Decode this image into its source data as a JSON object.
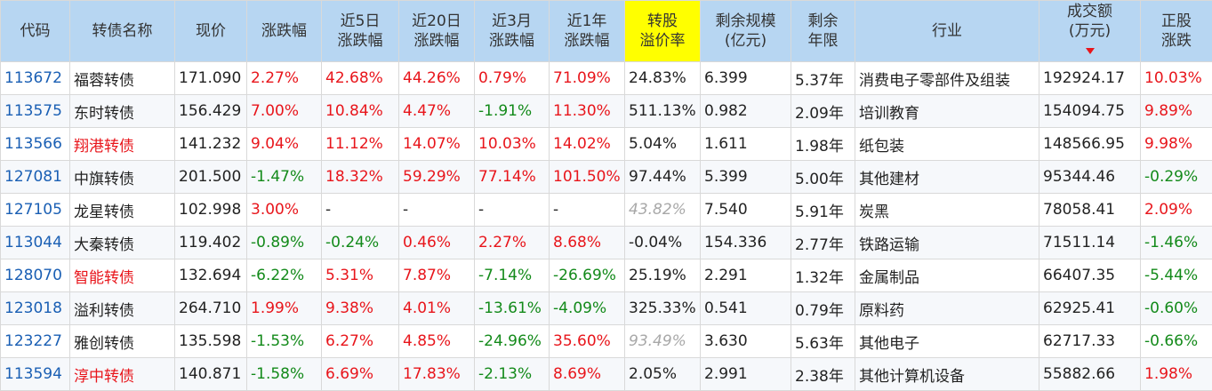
{
  "headers": [
    [
      "代码"
    ],
    [
      "转债名称"
    ],
    [
      "现价"
    ],
    [
      "涨跌幅"
    ],
    [
      "近5日",
      "涨跌幅"
    ],
    [
      "近20日",
      "涨跌幅"
    ],
    [
      "近3月",
      "涨跌幅"
    ],
    [
      "近1年",
      "涨跌幅"
    ],
    [
      "转股",
      "溢价率"
    ],
    [
      "剩余规模",
      "(亿元)"
    ],
    [
      "剩余",
      "年限"
    ],
    [
      "行业"
    ],
    [
      "成交额",
      "(万元)"
    ],
    [
      "正股",
      "涨跌"
    ]
  ],
  "sorted_column": "成交额",
  "colors": {
    "up": "#e8151b",
    "down": "#138a1a",
    "code": "#1a5fb4",
    "header_bg": "#b7d6f2",
    "highlight_header": "#ffff00"
  },
  "rows": [
    {
      "code": "113672",
      "name": "福蓉转债",
      "name_red": false,
      "price": "171.090",
      "chg": "2.27%",
      "chg5": "42.68%",
      "chg20": "44.26%",
      "chg3m": "0.79%",
      "chg1y": "71.09%",
      "premium": "24.83%",
      "premium_gray": false,
      "scale": "6.399",
      "years": "5.37年",
      "industry": "消费电子零部件及组装",
      "turnover": "192924.17",
      "stock_chg": "10.03%"
    },
    {
      "code": "113575",
      "name": "东时转债",
      "name_red": false,
      "price": "156.429",
      "chg": "7.00%",
      "chg5": "10.84%",
      "chg20": "4.47%",
      "chg3m": "-1.91%",
      "chg1y": "11.30%",
      "premium": "511.13%",
      "premium_gray": false,
      "scale": "0.982",
      "years": "2.09年",
      "industry": "培训教育",
      "turnover": "154094.75",
      "stock_chg": "9.89%"
    },
    {
      "code": "113566",
      "name": "翔港转债",
      "name_red": true,
      "price": "141.232",
      "chg": "9.04%",
      "chg5": "11.12%",
      "chg20": "14.07%",
      "chg3m": "10.03%",
      "chg1y": "14.02%",
      "premium": "5.04%",
      "premium_gray": false,
      "scale": "1.611",
      "years": "1.98年",
      "industry": "纸包装",
      "turnover": "148566.95",
      "stock_chg": "9.98%"
    },
    {
      "code": "127081",
      "name": "中旗转债",
      "name_red": false,
      "price": "201.500",
      "chg": "-1.47%",
      "chg5": "18.32%",
      "chg20": "59.29%",
      "chg3m": "77.14%",
      "chg1y": "101.50%",
      "premium": "97.44%",
      "premium_gray": false,
      "scale": "5.399",
      "years": "5.00年",
      "industry": "其他建材",
      "turnover": "95344.46",
      "stock_chg": "-0.29%"
    },
    {
      "code": "127105",
      "name": "龙星转债",
      "name_red": false,
      "price": "102.998",
      "chg": "3.00%",
      "chg5": "-",
      "chg20": "-",
      "chg3m": "-",
      "chg1y": "-",
      "premium": "43.82%",
      "premium_gray": true,
      "scale": "7.540",
      "years": "5.91年",
      "industry": "炭黑",
      "turnover": "78058.41",
      "stock_chg": "2.09%"
    },
    {
      "code": "113044",
      "name": "大秦转债",
      "name_red": false,
      "price": "119.402",
      "chg": "-0.89%",
      "chg5": "-0.24%",
      "chg20": "0.46%",
      "chg3m": "2.27%",
      "chg1y": "8.68%",
      "premium": "-0.04%",
      "premium_gray": false,
      "scale": "154.336",
      "years": "2.77年",
      "industry": "铁路运输",
      "turnover": "71511.14",
      "stock_chg": "-1.46%"
    },
    {
      "code": "128070",
      "name": "智能转债",
      "name_red": true,
      "price": "132.694",
      "chg": "-6.22%",
      "chg5": "5.31%",
      "chg20": "7.87%",
      "chg3m": "-7.14%",
      "chg1y": "-26.69%",
      "premium": "25.19%",
      "premium_gray": false,
      "scale": "2.291",
      "years": "1.32年",
      "industry": "金属制品",
      "turnover": "66407.35",
      "stock_chg": "-5.44%"
    },
    {
      "code": "123018",
      "name": "溢利转债",
      "name_red": false,
      "price": "264.710",
      "chg": "1.99%",
      "chg5": "9.38%",
      "chg20": "4.01%",
      "chg3m": "-13.61%",
      "chg1y": "-4.09%",
      "premium": "325.33%",
      "premium_gray": false,
      "scale": "0.541",
      "years": "0.79年",
      "industry": "原料药",
      "turnover": "62925.41",
      "stock_chg": "-0.60%"
    },
    {
      "code": "123227",
      "name": "雅创转债",
      "name_red": false,
      "price": "135.598",
      "chg": "-1.53%",
      "chg5": "6.27%",
      "chg20": "4.85%",
      "chg3m": "-24.96%",
      "chg1y": "35.60%",
      "premium": "93.49%",
      "premium_gray": true,
      "scale": "3.630",
      "years": "5.63年",
      "industry": "其他电子",
      "turnover": "62717.33",
      "stock_chg": "-0.66%"
    },
    {
      "code": "113594",
      "name": "淳中转债",
      "name_red": true,
      "price": "140.871",
      "chg": "-1.58%",
      "chg5": "6.69%",
      "chg20": "17.83%",
      "chg3m": "-2.13%",
      "chg1y": "8.69%",
      "premium": "2.05%",
      "premium_gray": false,
      "scale": "2.991",
      "years": "2.38年",
      "industry": "其他计算机设备",
      "turnover": "55882.66",
      "stock_chg": "1.98%"
    }
  ]
}
